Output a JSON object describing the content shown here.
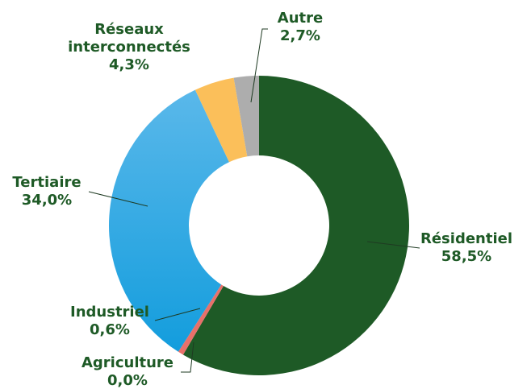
{
  "chart_data": {
    "type": "donut",
    "categories": [
      "Résidentiel",
      "Agriculture",
      "Industriel",
      "Tertiaire",
      "Réseaux interconnectés",
      "Autre"
    ],
    "values": [
      58.5,
      0.0,
      0.6,
      34.0,
      4.3,
      2.7
    ],
    "value_labels": [
      "58,5%",
      "0,0%",
      "0,6%",
      "34,0%",
      "4,3%",
      "2,7%"
    ],
    "colors": [
      "#1e5a26",
      "#c0504d",
      "#e8706a",
      "#2aa6e2",
      "#fbbf5a",
      "#adadad"
    ]
  }
}
